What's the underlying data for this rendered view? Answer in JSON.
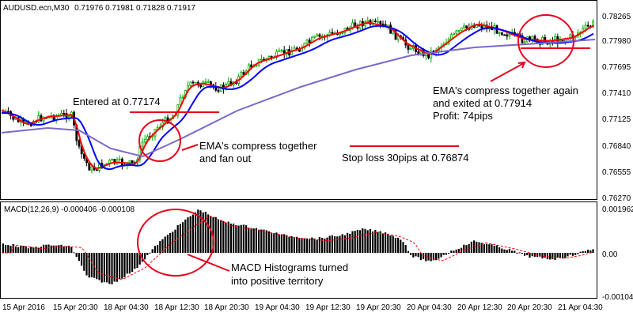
{
  "window": {
    "symbol_title": "AUDUSD.ecn,M30",
    "ohlc": "0.71976 0.71981 0.71828 0.71917"
  },
  "price_axis": {
    "labels": [
      "0.78265",
      "0.77980",
      "0.77695",
      "0.77410",
      "0.77125",
      "0.76840",
      "0.76555",
      "0.76270"
    ]
  },
  "macd": {
    "title": "MACD(12,26,9) -0.000406 -0.000108",
    "axis_labels": [
      "0.001962",
      "0.00",
      "-0.001045"
    ]
  },
  "time_axis": {
    "labels": [
      "15 Apr 2016",
      "15 Apr 20:30",
      "18 Apr 04:30",
      "18 Apr 12:30",
      "18 Apr 20:30",
      "19 Apr 04:30",
      "19 Apr 12:30",
      "19 Apr 20:30",
      "20 Apr 04:30",
      "20 Apr 12:30",
      "20 Apr 20:30",
      "21 Apr 04:30"
    ]
  },
  "annotations": {
    "entered": "Entered at 0.77174",
    "ema_fan_line1": "EMA's compress together",
    "ema_fan_line2": "and fan out",
    "stop_loss": "Stop loss 30pips at 0.76874",
    "exit_line1": "EMA's compress together again",
    "exit_line2": "and exited at 0.77914",
    "exit_line3": "Profit: 74pips",
    "macd_line1": "MACD Histograms turned",
    "macd_line2": "into positive territory"
  },
  "colors": {
    "bull_candle": "#00aa00",
    "bear_candle": "#000000",
    "ema_fast": "#ff0000",
    "ema_slow": "#0000ff",
    "ema_long": "#7b68c8",
    "annotation": "#e8001c",
    "macd_hist": "#000000",
    "macd_signal": "#ff0000"
  }
}
